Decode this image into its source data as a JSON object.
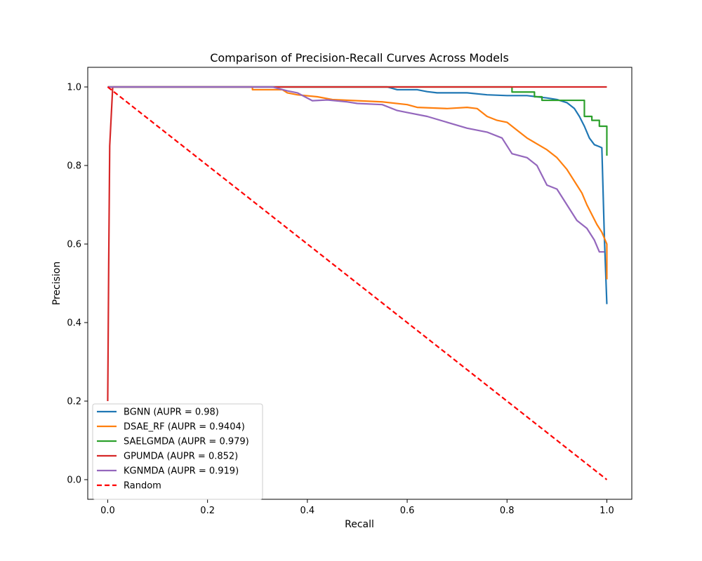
{
  "chart_data": {
    "type": "line",
    "title": "Comparison of Precision-Recall Curves Across Models",
    "xlabel": "Recall",
    "ylabel": "Precision",
    "xlim": [
      -0.04,
      1.05
    ],
    "ylim": [
      -0.05,
      1.05
    ],
    "xticks": [
      "0.0",
      "0.2",
      "0.4",
      "0.6",
      "0.8",
      "1.0"
    ],
    "yticks": [
      "0.0",
      "0.2",
      "0.4",
      "0.6",
      "0.8",
      "1.0"
    ],
    "grid": false,
    "legend_position": "lower-left",
    "series": [
      {
        "name": "BGNN (AUPR = 0.98)",
        "color": "#1f77b4",
        "dash": false,
        "x": [
          0.0,
          0.56,
          0.58,
          0.62,
          0.64,
          0.66,
          0.72,
          0.76,
          0.8,
          0.84,
          0.86,
          0.88,
          0.9,
          0.92,
          0.935,
          0.945,
          0.955,
          0.965,
          0.975,
          0.985,
          0.99,
          0.995,
          1.0
        ],
        "y": [
          1.0,
          1.0,
          0.993,
          0.993,
          0.988,
          0.985,
          0.985,
          0.98,
          0.978,
          0.978,
          0.975,
          0.972,
          0.968,
          0.96,
          0.945,
          0.925,
          0.9,
          0.87,
          0.853,
          0.848,
          0.845,
          0.62,
          0.447
        ]
      },
      {
        "name": "DSAE_RF (AUPR = 0.9404)",
        "color": "#ff7f0e",
        "dash": false,
        "x": [
          0.0,
          0.29,
          0.29,
          0.35,
          0.36,
          0.38,
          0.42,
          0.45,
          0.5,
          0.55,
          0.6,
          0.62,
          0.68,
          0.72,
          0.74,
          0.76,
          0.78,
          0.8,
          0.82,
          0.84,
          0.86,
          0.88,
          0.9,
          0.92,
          0.94,
          0.95,
          0.96,
          0.97,
          0.98,
          0.99,
          1.0,
          1.0
        ],
        "y": [
          1.0,
          1.0,
          0.993,
          0.993,
          0.985,
          0.98,
          0.975,
          0.968,
          0.965,
          0.962,
          0.955,
          0.948,
          0.945,
          0.948,
          0.945,
          0.925,
          0.915,
          0.91,
          0.89,
          0.87,
          0.855,
          0.84,
          0.82,
          0.79,
          0.75,
          0.73,
          0.7,
          0.675,
          0.65,
          0.63,
          0.6,
          0.51
        ]
      },
      {
        "name": "SAELGMDA (AUPR = 0.979)",
        "color": "#2ca02c",
        "dash": false,
        "x": [
          0.0,
          0.81,
          0.81,
          0.855,
          0.855,
          0.87,
          0.87,
          0.955,
          0.955,
          0.97,
          0.97,
          0.985,
          0.985,
          1.0,
          1.0
        ],
        "y": [
          1.0,
          1.0,
          0.987,
          0.987,
          0.975,
          0.975,
          0.966,
          0.966,
          0.925,
          0.925,
          0.915,
          0.915,
          0.9,
          0.9,
          0.825
        ]
      },
      {
        "name": "GPUMDA (AUPR = 0.852)",
        "color": "#d62728",
        "dash": false,
        "x": [
          0.0,
          0.002,
          0.004,
          0.01,
          1.0
        ],
        "y": [
          0.2,
          0.55,
          0.85,
          1.0,
          1.0
        ]
      },
      {
        "name": "KGNMDA (AUPR = 0.919)",
        "color": "#9467bd",
        "dash": false,
        "x": [
          0.0,
          0.33,
          0.36,
          0.38,
          0.41,
          0.44,
          0.48,
          0.5,
          0.55,
          0.58,
          0.6,
          0.64,
          0.68,
          0.72,
          0.76,
          0.79,
          0.81,
          0.84,
          0.86,
          0.88,
          0.9,
          0.92,
          0.94,
          0.96,
          0.975,
          0.985,
          0.995
        ],
        "y": [
          1.0,
          1.0,
          0.99,
          0.985,
          0.965,
          0.967,
          0.962,
          0.958,
          0.955,
          0.94,
          0.935,
          0.925,
          0.91,
          0.895,
          0.885,
          0.87,
          0.83,
          0.82,
          0.8,
          0.75,
          0.74,
          0.7,
          0.66,
          0.64,
          0.61,
          0.58,
          0.58
        ]
      },
      {
        "name": "Random",
        "color": "#ff0000",
        "dash": true,
        "x": [
          0.0,
          1.0
        ],
        "y": [
          1.0,
          0.0
        ]
      }
    ]
  }
}
